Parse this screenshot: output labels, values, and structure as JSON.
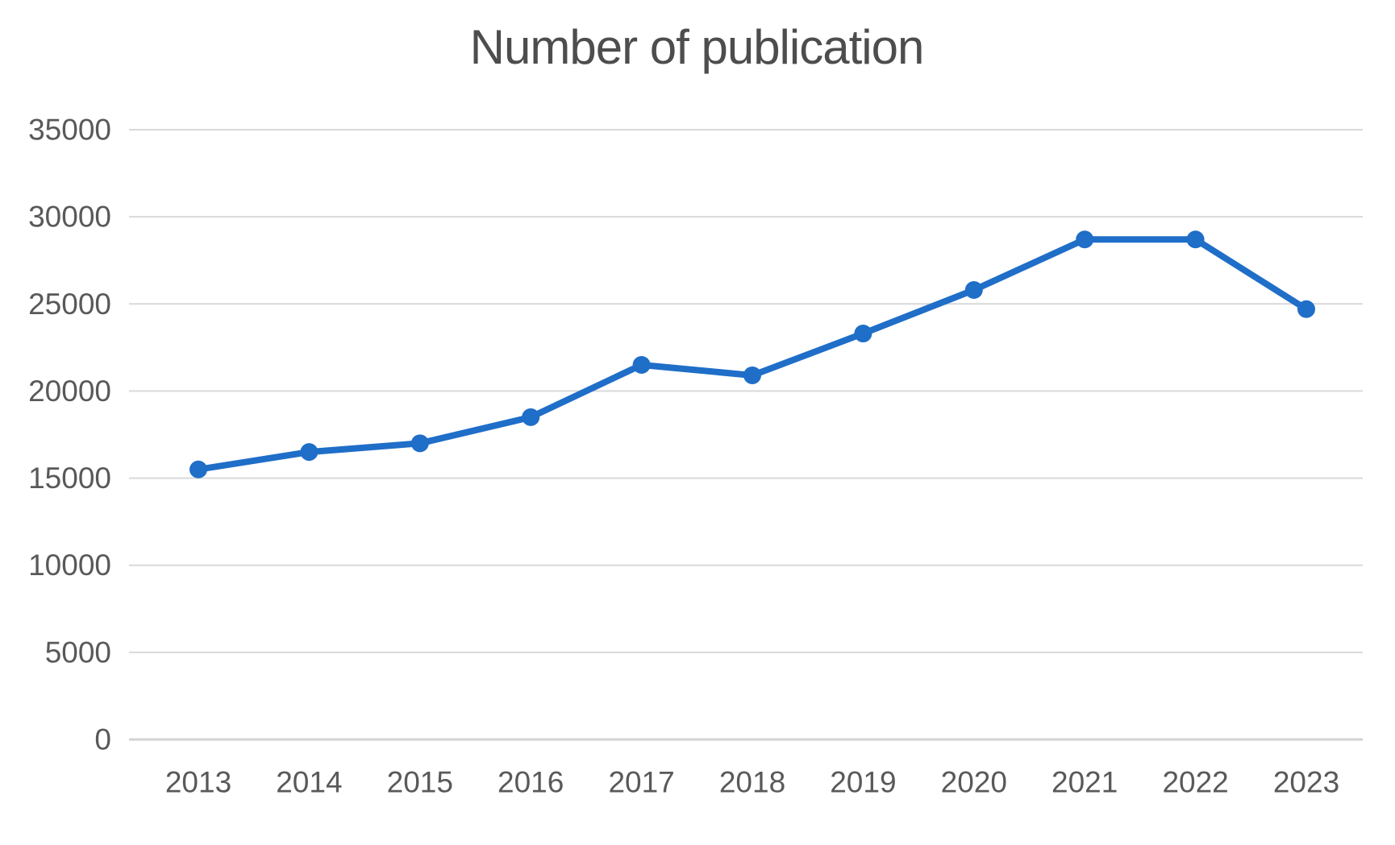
{
  "chart_data": {
    "type": "line",
    "title": "Number of publication",
    "x": [
      "2013",
      "2014",
      "2015",
      "2016",
      "2017",
      "2018",
      "2019",
      "2020",
      "2021",
      "2022",
      "2023"
    ],
    "series": [
      {
        "name": "Number of publication",
        "values": [
          15500,
          16500,
          17000,
          18500,
          21500,
          20900,
          23300,
          25800,
          28700,
          28700,
          24700
        ]
      }
    ],
    "xlabel": "",
    "ylabel": "",
    "ylim": [
      0,
      35000
    ],
    "yticks": [
      0,
      5000,
      10000,
      15000,
      20000,
      25000,
      30000,
      35000
    ],
    "grid": true,
    "legend": "none",
    "marker": "circle",
    "colors": {
      "line": "#1f6ec8",
      "marker": "#1f6ec8",
      "gridline": "#d9d9d9",
      "axis_line": "#d2d2d2",
      "tick_text": "#595959",
      "title_text": "#4d4d4d",
      "background": "#ffffff"
    }
  }
}
